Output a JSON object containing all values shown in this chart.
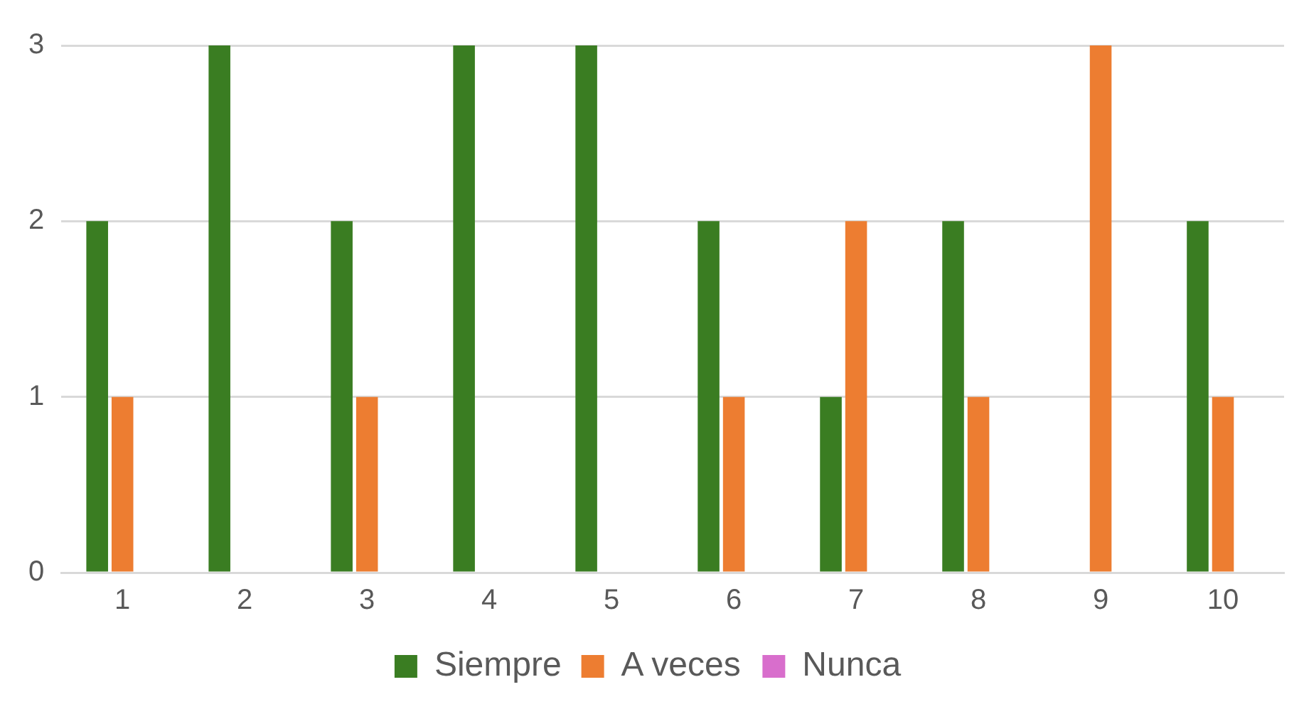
{
  "chart_data": {
    "type": "bar",
    "categories": [
      "1",
      "2",
      "3",
      "4",
      "5",
      "6",
      "7",
      "8",
      "9",
      "10"
    ],
    "series": [
      {
        "name": "Siempre",
        "color": "#3a7d22",
        "values": [
          2,
          3,
          2,
          3,
          3,
          2,
          1,
          2,
          0,
          2
        ]
      },
      {
        "name": "A veces",
        "color": "#ed7d31",
        "values": [
          1,
          0,
          1,
          0,
          0,
          1,
          2,
          1,
          3,
          1
        ]
      },
      {
        "name": "Nunca",
        "color": "#d86ecc",
        "values": [
          0,
          0,
          0,
          0,
          0,
          0,
          0,
          0,
          0,
          0
        ]
      }
    ],
    "ylim": [
      0,
      3
    ],
    "yticks": [
      0,
      1,
      2,
      3
    ],
    "grid": "y",
    "legend": "bottom"
  }
}
